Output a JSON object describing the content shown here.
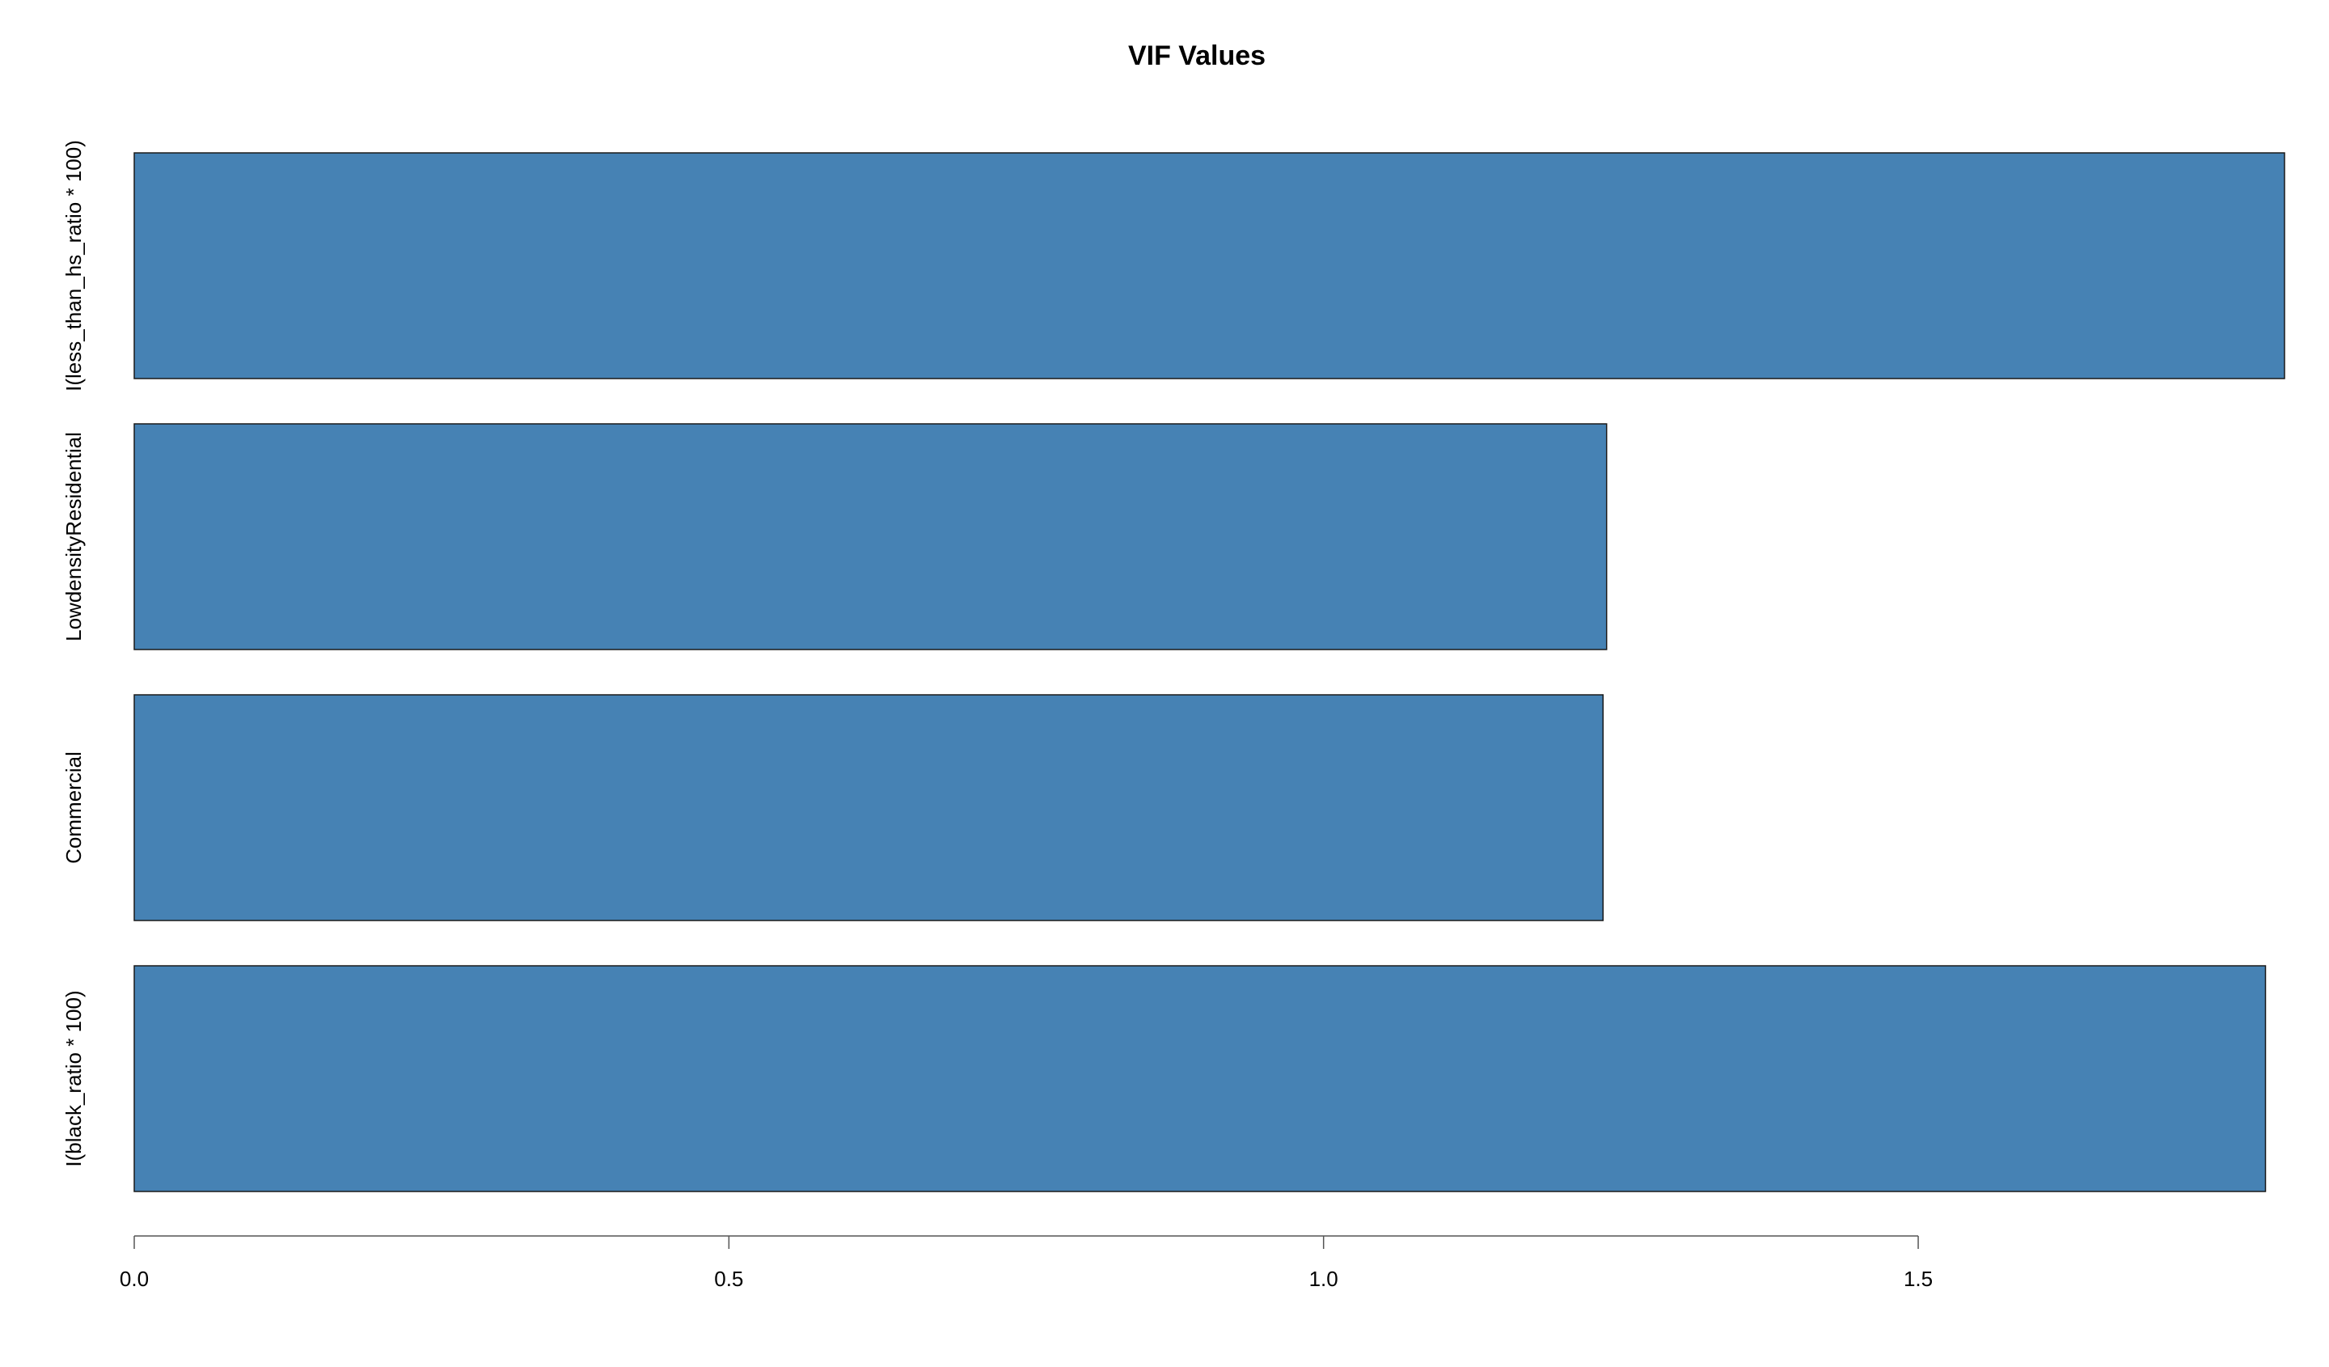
{
  "chart_data": {
    "type": "bar",
    "orientation": "horizontal",
    "title": "VIF Values",
    "xlabel": "",
    "ylabel": "",
    "categories": [
      "I(less_than_hs_ratio * 100)",
      "LowdensityResidential",
      "Commercial",
      "I(black_ratio * 100)"
    ],
    "values": [
      1.808,
      1.238,
      1.235,
      1.792
    ],
    "xlim": [
      0,
      1.808
    ],
    "xticks": [
      0.0,
      0.5,
      1.0,
      1.5
    ],
    "xtick_labels": [
      "0.0",
      "0.5",
      "1.0",
      "1.5"
    ],
    "grid": false,
    "legend": "none",
    "colors": {
      "bar_fill": "#4682b4",
      "bar_border": "#1a1a1a",
      "axis": "#555555"
    }
  }
}
